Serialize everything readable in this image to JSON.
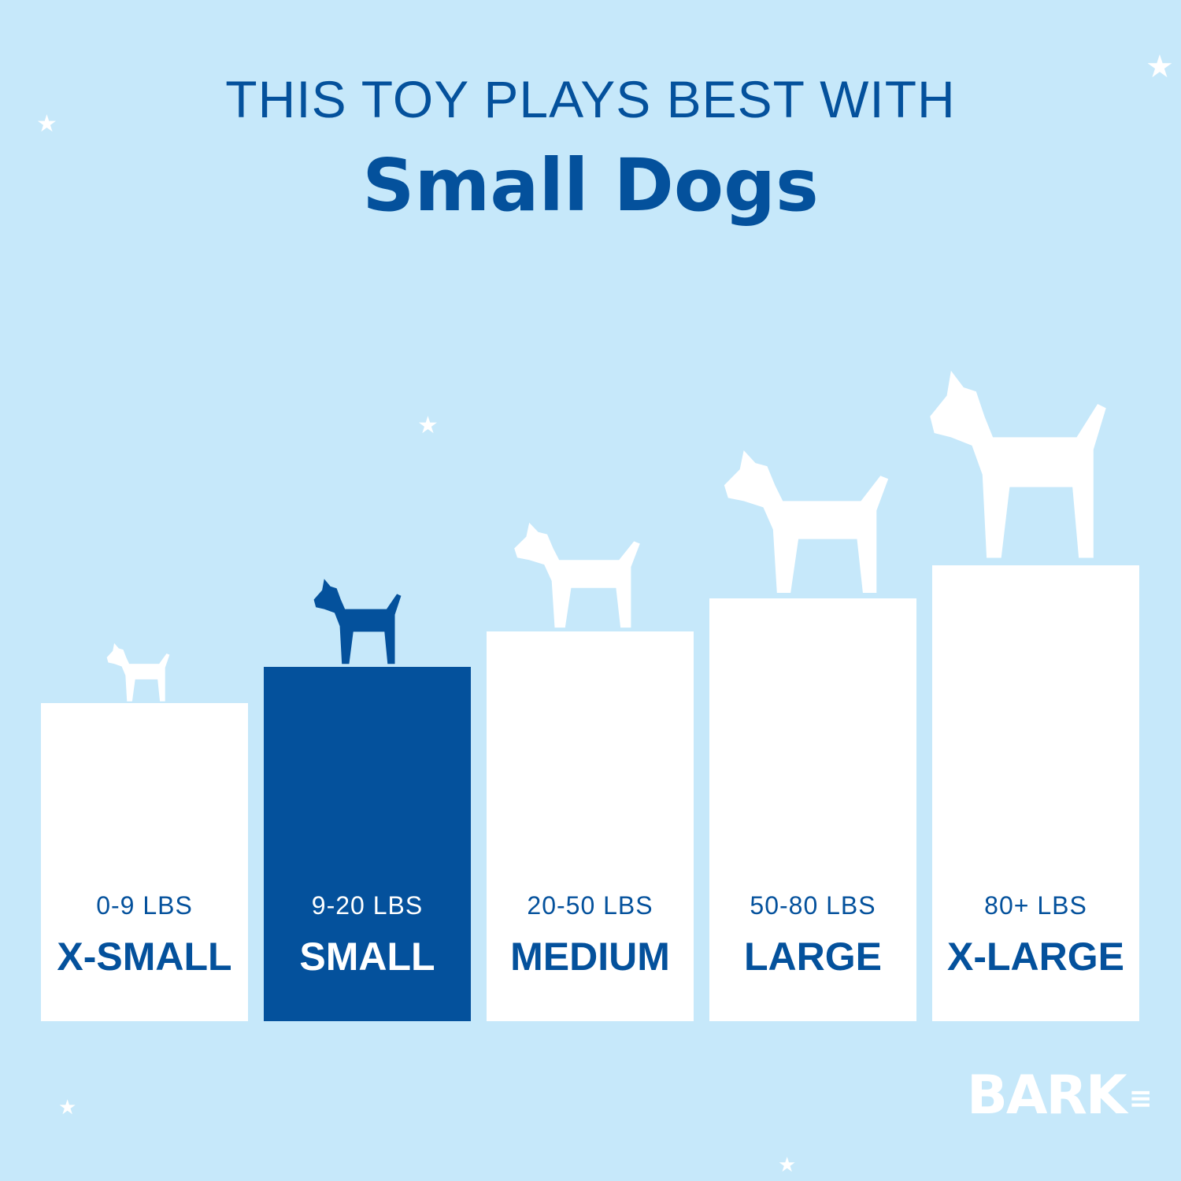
{
  "header": {
    "line1": "THIS TOY PLAYS BEST WITH",
    "line2": "Small Dogs"
  },
  "sizes": [
    {
      "range": "0-9 LBS",
      "label": "X-SMALL",
      "active": false
    },
    {
      "range": "9-20 LBS",
      "label": "SMALL",
      "active": true
    },
    {
      "range": "20-50 LBS",
      "label": "MEDIUM",
      "active": false
    },
    {
      "range": "50-80 LBS",
      "label": "LARGE",
      "active": false
    },
    {
      "range": "80+ LBS",
      "label": "X-LARGE",
      "active": false
    }
  ],
  "logo": "BARK",
  "colors": {
    "background": "#c6e8fa",
    "accent": "#04519c",
    "neutral": "#ffffff"
  },
  "icons": [
    "star-icon",
    "dog-silhouette-icon"
  ]
}
